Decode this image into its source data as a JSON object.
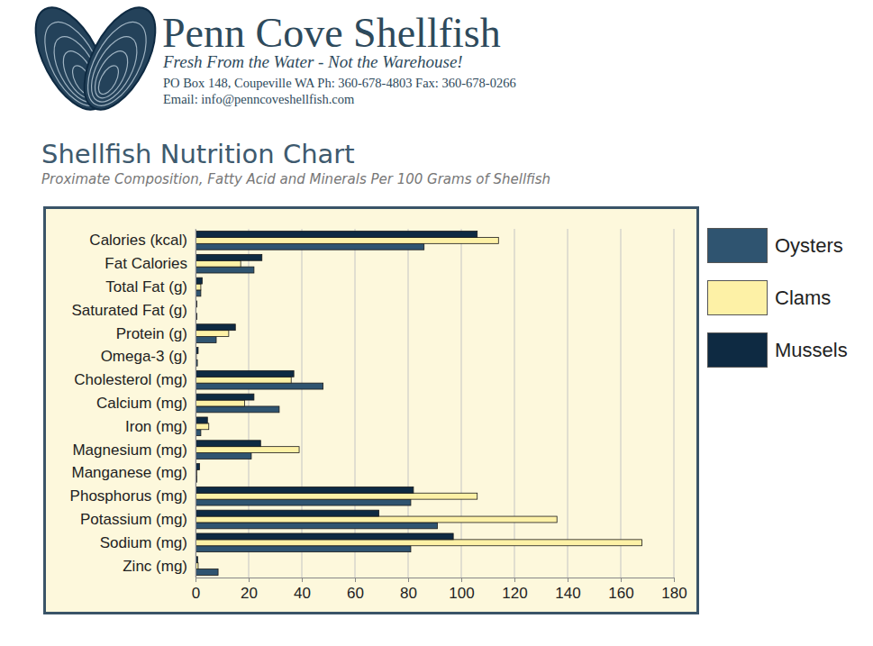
{
  "header": {
    "company": "Penn Cove Shellfish",
    "tagline": "Fresh From the Water - Not the Warehouse!",
    "address": "PO Box 148, Coupeville WA Ph: 360-678-4803 Fax: 360-678-0266",
    "email": "Email: info@penncoveshellfish.com"
  },
  "chart_data": {
    "type": "bar",
    "orientation": "horizontal",
    "title": "Shellfish Nutrition Chart",
    "subtitle": "Proximate Composition, Fatty Acid and Minerals Per 100 Grams of Shellfish",
    "categories": [
      "Calories (kcal)",
      "Fat Calories",
      "Total Fat (g)",
      "Saturated Fat (g)",
      "Protein (g)",
      "Omega-3 (g)",
      "Cholesterol (mg)",
      "Calcium (mg)",
      "Iron (mg)",
      "Magnesium (mg)",
      "Manganese (mg)",
      "Phosphorus (mg)",
      "Potassium (mg)",
      "Sodium (mg)",
      "Zinc (mg)"
    ],
    "series": [
      {
        "name": "Oysters",
        "color": "#2f5470",
        "values": [
          86,
          22,
          2,
          0.5,
          7.8,
          0.7,
          48,
          31.5,
          2,
          21,
          0.5,
          81,
          91,
          81,
          8.5
        ]
      },
      {
        "name": "Clams",
        "color": "#fdf1a6",
        "values": [
          114,
          17,
          2,
          0.2,
          12.5,
          0.3,
          36,
          18.5,
          5,
          39,
          0.5,
          106,
          136,
          168,
          1
        ]
      },
      {
        "name": "Mussels",
        "color": "#0e2a42",
        "values": [
          106,
          25,
          2.5,
          0.5,
          15,
          1,
          37,
          22,
          4.5,
          24.5,
          1.5,
          82,
          69,
          97,
          0.8
        ]
      }
    ],
    "xlim": [
      0,
      180
    ],
    "xticks": [
      0,
      20,
      40,
      60,
      80,
      100,
      120,
      140,
      160,
      180
    ],
    "grid": true,
    "legend": "right"
  }
}
